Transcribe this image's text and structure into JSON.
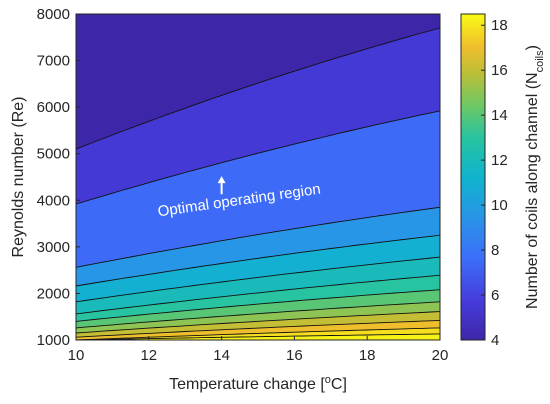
{
  "chart_data": {
    "type": "contour",
    "xlabel": "Temperature change [",
    "xlabel_sup": "o",
    "xlabel_suffix": "C]",
    "ylabel": "Reynolds number (Re)",
    "xlim": [
      10,
      20
    ],
    "ylim": [
      1000,
      8000
    ],
    "xticks": [
      "10",
      "12",
      "14",
      "16",
      "18",
      "20"
    ],
    "yticks": [
      "1000",
      "2000",
      "3000",
      "4000",
      "5000",
      "6000",
      "7000",
      "8000"
    ],
    "colorbar": {
      "label": "Number of coils along channel (N",
      "label_sub": "coils",
      "label_suffix": ")",
      "range": [
        4,
        18.5
      ],
      "ticks": [
        "4",
        "6",
        "8",
        "10",
        "12",
        "14",
        "16",
        "18"
      ]
    },
    "contour_levels": [
      {
        "value": 4.5,
        "y_at_x10": 5100,
        "y_at_x20": 7700
      },
      {
        "value": 6.5,
        "y_at_x10": 3920,
        "y_at_x20": 5920
      },
      {
        "value": 8.5,
        "y_at_x10": 2560,
        "y_at_x20": 3850
      },
      {
        "value": 10.5,
        "y_at_x10": 2160,
        "y_at_x20": 3250
      },
      {
        "value": 11.5,
        "y_at_x10": 1820,
        "y_at_x20": 2780
      },
      {
        "value": 12.5,
        "y_at_x10": 1560,
        "y_at_x20": 2390
      },
      {
        "value": 13.5,
        "y_at_x10": 1400,
        "y_at_x20": 2080
      },
      {
        "value": 14.5,
        "y_at_x10": 1260,
        "y_at_x20": 1820
      },
      {
        "value": 15.5,
        "y_at_x10": 1150,
        "y_at_x20": 1610
      },
      {
        "value": 16.5,
        "y_at_x10": 1060,
        "y_at_x20": 1420
      },
      {
        "value": 17.5,
        "y_at_x10": 1000,
        "y_at_x20": 1260
      },
      {
        "value": 18,
        "y_at_x10": 1000,
        "y_at_x20": 1130
      }
    ],
    "fill_values": [
      4,
      5.5,
      7.5,
      9.5,
      11,
      12,
      13,
      14,
      15,
      16,
      17,
      17.8,
      18.3
    ],
    "annotation": {
      "text": "Optimal operating region",
      "x": 14.5,
      "y": 3900,
      "rotation_deg": -8,
      "arrow": {
        "x": 14,
        "y_from": 4130,
        "y_to": 4520
      }
    }
  }
}
